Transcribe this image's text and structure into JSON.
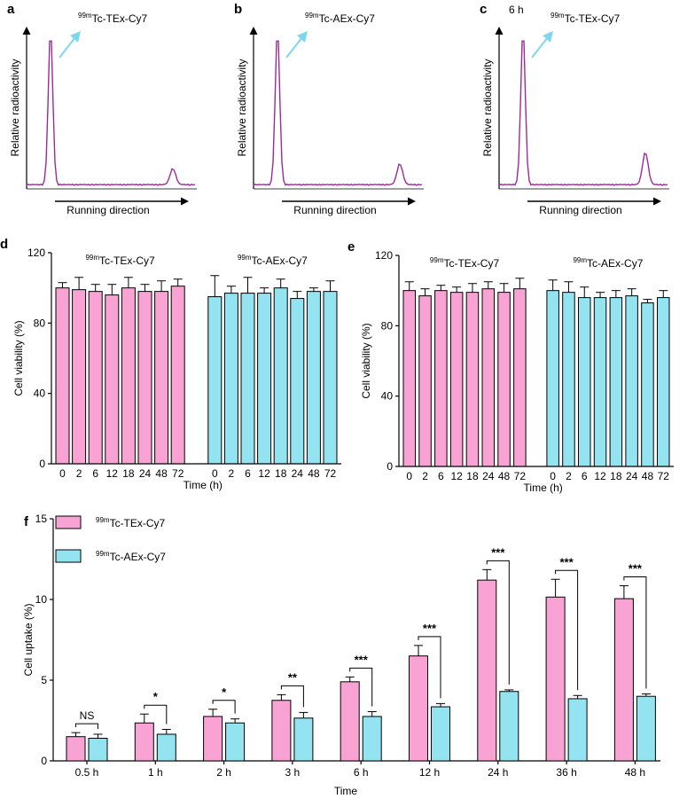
{
  "colors": {
    "pink": "#f9a3d4",
    "cyan": "#93e3f1",
    "trace": "#9c2b96",
    "arrow": "#7fd6ee"
  },
  "panels_abc": [
    {
      "letter": "a",
      "sup": "99m",
      "name": "Tc-TEx-Cy7",
      "time": "",
      "ylabel": "Relative radioactivity",
      "xlabel": "Running direction",
      "second_peak": 0.1
    },
    {
      "letter": "b",
      "sup": "99m",
      "name": "Tc-AEx-Cy7",
      "time": "",
      "ylabel": "Relative radioactivity",
      "xlabel": "Running direction",
      "second_peak": 0.13
    },
    {
      "letter": "c",
      "sup": "99m",
      "name": "Tc-TEx-Cy7",
      "time": "6 h",
      "ylabel": "Relative radioactivity",
      "xlabel": "Running direction",
      "second_peak": 0.2
    }
  ],
  "chart_data": [
    {
      "panel": "d",
      "type": "bar",
      "ylabel": "Cell viability (%)",
      "xlabel": "Time (h)",
      "ylim": [
        0,
        120
      ],
      "yticks": [
        "0",
        "40",
        "80",
        "120"
      ],
      "categories": [
        "0",
        "2",
        "6",
        "12",
        "18",
        "24",
        "48",
        "72"
      ],
      "groups": [
        {
          "sup": "99m",
          "name": "Tc-TEx-Cy7",
          "color": "#f9a3d4",
          "values": [
            100,
            99,
            98,
            96,
            100,
            98,
            98,
            101
          ],
          "errors": [
            3,
            7,
            4,
            6,
            6,
            4,
            6,
            4
          ]
        },
        {
          "sup": "99m",
          "name": "Tc-AEx-Cy7",
          "color": "#93e3f1",
          "values": [
            95,
            97,
            97,
            97,
            100,
            94,
            98,
            98
          ],
          "errors": [
            12,
            4,
            9,
            3,
            5,
            4,
            2,
            6
          ]
        }
      ]
    },
    {
      "panel": "e",
      "type": "bar",
      "ylabel": "Cell viability (%)",
      "xlabel": "Time (h)",
      "ylim": [
        0,
        120
      ],
      "yticks": [
        "0",
        "40",
        "80",
        "120"
      ],
      "categories": [
        "0",
        "2",
        "6",
        "12",
        "18",
        "24",
        "48",
        "72"
      ],
      "groups": [
        {
          "sup": "99m",
          "name": "Tc-TEx-Cy7",
          "color": "#f9a3d4",
          "values": [
            100,
            97,
            100,
            99,
            99,
            101,
            99,
            101
          ],
          "errors": [
            5,
            4,
            3,
            3,
            5,
            4,
            5,
            6
          ]
        },
        {
          "sup": "99m",
          "name": "Tc-AEx-Cy7",
          "color": "#93e3f1",
          "values": [
            100,
            99,
            96,
            96,
            96,
            97,
            93,
            96
          ],
          "errors": [
            6,
            6,
            6,
            3,
            4,
            4,
            2,
            4
          ]
        }
      ]
    },
    {
      "panel": "f",
      "type": "bar",
      "ylabel": "Cell uptake (%)",
      "xlabel": "Time",
      "ylim": [
        0,
        15
      ],
      "yticks": [
        "0",
        "5",
        "10",
        "15"
      ],
      "categories": [
        "0.5 h",
        "1 h",
        "2 h",
        "3 h",
        "6 h",
        "12 h",
        "24 h",
        "36 h",
        "48 h"
      ],
      "series": [
        {
          "sup": "99m",
          "name": "Tc-TEx-Cy7",
          "color": "#f9a3d4",
          "values": [
            1.5,
            2.35,
            2.75,
            3.75,
            4.9,
            6.5,
            11.2,
            10.15,
            10.05
          ],
          "errors": [
            0.25,
            0.55,
            0.45,
            0.35,
            0.3,
            0.65,
            0.65,
            1.1,
            0.8
          ]
        },
        {
          "sup": "99m",
          "name": "Tc-AEx-Cy7",
          "color": "#93e3f1",
          "values": [
            1.4,
            1.65,
            2.35,
            2.65,
            2.75,
            3.35,
            4.3,
            3.85,
            4.0
          ],
          "errors": [
            0.25,
            0.3,
            0.25,
            0.35,
            0.3,
            0.2,
            0.1,
            0.2,
            0.15
          ]
        }
      ],
      "significance": [
        "NS",
        "*",
        "*",
        "**",
        "***",
        "***",
        "***",
        "***",
        "***"
      ]
    }
  ]
}
